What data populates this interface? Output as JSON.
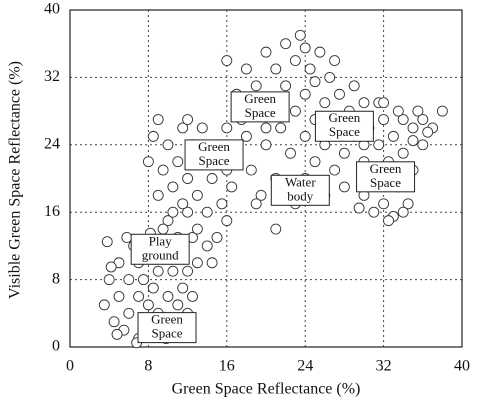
{
  "chart_data": {
    "type": "scatter",
    "x_label": "Green Space Reflectance (%)",
    "y_label": "Visible Green Space Reflectance (%)",
    "xlim": [
      0,
      40
    ],
    "ylim": [
      0,
      40
    ],
    "xticks": [
      0,
      8,
      16,
      24,
      32,
      40
    ],
    "yticks": [
      0,
      8,
      16,
      24,
      32,
      40
    ],
    "grid": true,
    "marker_color": "#333333",
    "x": [
      3.5,
      4,
      4.5,
      5,
      5,
      5.5,
      6,
      6,
      6.5,
      7,
      7,
      7,
      7.5,
      7.5,
      8,
      8,
      8.5,
      8.5,
      9,
      9,
      9.5,
      10,
      10,
      10.5,
      11,
      11,
      11.5,
      12,
      12,
      12.5,
      3.8,
      4.2,
      5.8,
      6.8,
      8.2,
      9.8,
      11,
      12.5,
      13,
      4.8,
      8,
      8.5,
      9,
      9.5,
      10,
      10,
      10.5,
      11,
      11,
      11.5,
      12,
      12,
      12.5,
      13,
      13,
      13.5,
      14,
      14,
      14.5,
      15,
      15,
      15.5,
      16,
      16,
      16.5,
      17,
      9,
      12,
      10.5,
      13.5,
      14.5,
      15.5,
      11.5,
      9.5,
      16,
      16,
      17,
      17.5,
      18,
      18,
      18.5,
      19,
      19,
      19.5,
      20,
      20,
      20.5,
      21,
      21,
      21.5,
      22,
      22,
      22.5,
      23,
      23,
      23,
      23.5,
      24,
      24,
      24,
      24.5,
      25,
      25,
      25.5,
      26,
      26,
      26,
      26.5,
      27,
      27,
      27.5,
      28,
      28,
      28.5,
      29,
      29,
      30,
      30,
      19,
      21,
      22,
      25,
      20,
      27,
      24,
      30,
      30.5,
      31,
      31.5,
      32,
      32,
      32.5,
      33,
      33,
      33.5,
      34,
      34,
      34.5,
      35,
      35,
      35.5,
      36,
      36,
      37,
      38,
      31,
      32.5,
      33.5,
      34,
      29.5,
      31.5,
      36.5,
      30,
      32,
      35
    ],
    "values": [
      5,
      8,
      3,
      6,
      10,
      2,
      4,
      8,
      12,
      1,
      6,
      10,
      3,
      8,
      5,
      11,
      2,
      7,
      9,
      4,
      12,
      6,
      3,
      9,
      5,
      11,
      7,
      4,
      9,
      13,
      12.5,
      9.5,
      13,
      0.5,
      13.5,
      1,
      2.5,
      6,
      10,
      1.5,
      22,
      25,
      18,
      21,
      15,
      24,
      19,
      13,
      22,
      26,
      16,
      20,
      24,
      14,
      18,
      22,
      12,
      16,
      20,
      13,
      24,
      17,
      15,
      21,
      19,
      23,
      27,
      27,
      16,
      26,
      10,
      22,
      17,
      14,
      26,
      34,
      30,
      27,
      33,
      25,
      21,
      31,
      28,
      18,
      35,
      24,
      29,
      33,
      20,
      26,
      36,
      31,
      23,
      34,
      28,
      17,
      37,
      30,
      25,
      20,
      33,
      27,
      22,
      35,
      29,
      24,
      18,
      32,
      26,
      21,
      30,
      23,
      19,
      28,
      31,
      25,
      22,
      29,
      17,
      14,
      19.5,
      31.5,
      26,
      34,
      35.5,
      18,
      26,
      20,
      24,
      17,
      27,
      22,
      15.5,
      25,
      19,
      27,
      23,
      17,
      26,
      21,
      28,
      24,
      27,
      26,
      28,
      16,
      15,
      28,
      16,
      16.5,
      29,
      25.5,
      24,
      29,
      24.5
    ],
    "annotations": [
      {
        "lines": [
          "Green",
          "Space"
        ],
        "x": 19.4,
        "y": 28.5
      },
      {
        "lines": [
          "Green",
          "Space"
        ],
        "x": 14.7,
        "y": 22.8
      },
      {
        "lines": [
          "Green",
          "Space"
        ],
        "x": 28,
        "y": 26.2
      },
      {
        "lines": [
          "Water",
          "body"
        ],
        "x": 23.5,
        "y": 18.6
      },
      {
        "lines": [
          "Green",
          "Space"
        ],
        "x": 32.2,
        "y": 20.2
      },
      {
        "lines": [
          "Play",
          "ground"
        ],
        "x": 9.2,
        "y": 11.6
      },
      {
        "lines": [
          "Green",
          "Space"
        ],
        "x": 9.9,
        "y": 2.3
      }
    ]
  }
}
